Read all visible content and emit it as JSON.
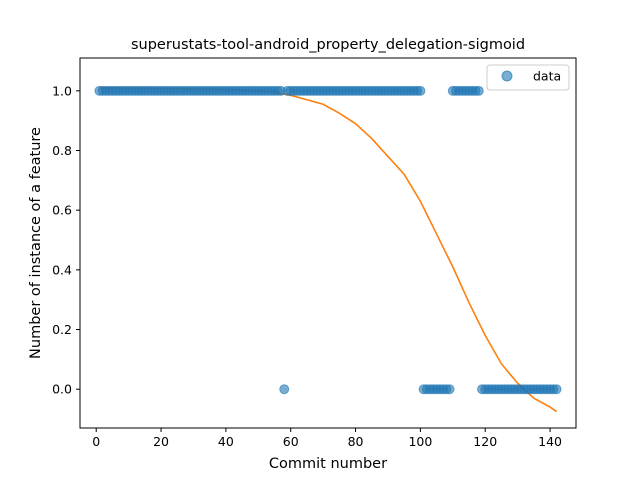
{
  "chart_data": {
    "type": "scatter",
    "title": "superustats-tool-android_property_delegation-sigmoid",
    "xlabel": "Commit number",
    "ylabel": "Number of instance of a feature",
    "xlim": [
      -5,
      148
    ],
    "ylim": [
      -0.13,
      1.11
    ],
    "xticks": [
      0,
      20,
      40,
      60,
      80,
      100,
      120,
      140
    ],
    "yticks": [
      0.0,
      0.2,
      0.4,
      0.6,
      0.8,
      1.0
    ],
    "xtick_labels": [
      "0",
      "20",
      "40",
      "60",
      "80",
      "100",
      "120",
      "140"
    ],
    "ytick_labels": [
      "0.0",
      "0.2",
      "0.4",
      "0.6",
      "0.8",
      "1.0"
    ],
    "legend": {
      "position": "top-right",
      "entries": [
        "data"
      ]
    },
    "grid": false,
    "colors": {
      "data": "#1f77b4",
      "fit": "#ff7f0e"
    },
    "series": [
      {
        "name": "data",
        "kind": "scatter",
        "points": [
          [
            1,
            1
          ],
          [
            2,
            1
          ],
          [
            3,
            1
          ],
          [
            4,
            1
          ],
          [
            5,
            1
          ],
          [
            6,
            1
          ],
          [
            7,
            1
          ],
          [
            8,
            1
          ],
          [
            9,
            1
          ],
          [
            10,
            1
          ],
          [
            11,
            1
          ],
          [
            12,
            1
          ],
          [
            13,
            1
          ],
          [
            14,
            1
          ],
          [
            15,
            1
          ],
          [
            16,
            1
          ],
          [
            17,
            1
          ],
          [
            18,
            1
          ],
          [
            19,
            1
          ],
          [
            20,
            1
          ],
          [
            21,
            1
          ],
          [
            22,
            1
          ],
          [
            23,
            1
          ],
          [
            24,
            1
          ],
          [
            25,
            1
          ],
          [
            26,
            1
          ],
          [
            27,
            1
          ],
          [
            28,
            1
          ],
          [
            29,
            1
          ],
          [
            30,
            1
          ],
          [
            31,
            1
          ],
          [
            32,
            1
          ],
          [
            33,
            1
          ],
          [
            34,
            1
          ],
          [
            35,
            1
          ],
          [
            36,
            1
          ],
          [
            37,
            1
          ],
          [
            38,
            1
          ],
          [
            39,
            1
          ],
          [
            40,
            1
          ],
          [
            41,
            1
          ],
          [
            42,
            1
          ],
          [
            43,
            1
          ],
          [
            44,
            1
          ],
          [
            45,
            1
          ],
          [
            46,
            1
          ],
          [
            47,
            1
          ],
          [
            48,
            1
          ],
          [
            49,
            1
          ],
          [
            50,
            1
          ],
          [
            51,
            1
          ],
          [
            52,
            1
          ],
          [
            53,
            1
          ],
          [
            54,
            1
          ],
          [
            55,
            1
          ],
          [
            56,
            1
          ],
          [
            57,
            1
          ],
          [
            58,
            0
          ],
          [
            59,
            1
          ],
          [
            60,
            1
          ],
          [
            61,
            1
          ],
          [
            62,
            1
          ],
          [
            63,
            1
          ],
          [
            64,
            1
          ],
          [
            65,
            1
          ],
          [
            66,
            1
          ],
          [
            67,
            1
          ],
          [
            68,
            1
          ],
          [
            69,
            1
          ],
          [
            70,
            1
          ],
          [
            71,
            1
          ],
          [
            72,
            1
          ],
          [
            73,
            1
          ],
          [
            74,
            1
          ],
          [
            75,
            1
          ],
          [
            76,
            1
          ],
          [
            77,
            1
          ],
          [
            78,
            1
          ],
          [
            79,
            1
          ],
          [
            80,
            1
          ],
          [
            81,
            1
          ],
          [
            82,
            1
          ],
          [
            83,
            1
          ],
          [
            84,
            1
          ],
          [
            85,
            1
          ],
          [
            86,
            1
          ],
          [
            87,
            1
          ],
          [
            88,
            1
          ],
          [
            89,
            1
          ],
          [
            90,
            1
          ],
          [
            91,
            1
          ],
          [
            92,
            1
          ],
          [
            93,
            1
          ],
          [
            94,
            1
          ],
          [
            95,
            1
          ],
          [
            96,
            1
          ],
          [
            97,
            1
          ],
          [
            98,
            1
          ],
          [
            99,
            1
          ],
          [
            100,
            1
          ],
          [
            101,
            0
          ],
          [
            102,
            0
          ],
          [
            103,
            0
          ],
          [
            104,
            0
          ],
          [
            105,
            0
          ],
          [
            106,
            0
          ],
          [
            107,
            0
          ],
          [
            108,
            0
          ],
          [
            109,
            0
          ],
          [
            110,
            1
          ],
          [
            111,
            1
          ],
          [
            112,
            1
          ],
          [
            113,
            1
          ],
          [
            114,
            1
          ],
          [
            115,
            1
          ],
          [
            116,
            1
          ],
          [
            117,
            1
          ],
          [
            118,
            1
          ],
          [
            119,
            0
          ],
          [
            120,
            0
          ],
          [
            121,
            0
          ],
          [
            122,
            0
          ],
          [
            123,
            0
          ],
          [
            124,
            0
          ],
          [
            125,
            0
          ],
          [
            126,
            0
          ],
          [
            127,
            0
          ],
          [
            128,
            0
          ],
          [
            129,
            0
          ],
          [
            130,
            0
          ],
          [
            131,
            0
          ],
          [
            132,
            0
          ],
          [
            133,
            0
          ],
          [
            134,
            0
          ],
          [
            135,
            0
          ],
          [
            136,
            0
          ],
          [
            137,
            0
          ],
          [
            138,
            0
          ],
          [
            139,
            0
          ],
          [
            140,
            0
          ],
          [
            141,
            0
          ],
          [
            142,
            0
          ]
        ]
      },
      {
        "kind": "line",
        "x": [
          1,
          20,
          40,
          50,
          55,
          60,
          65,
          70,
          75,
          80,
          85,
          90,
          95,
          100,
          105,
          110,
          115,
          120,
          125,
          130,
          135,
          140,
          142
        ],
        "y": [
          1.01,
          1.008,
          1.005,
          1.0,
          0.995,
          0.985,
          0.97,
          0.955,
          0.925,
          0.89,
          0.84,
          0.78,
          0.72,
          0.63,
          0.52,
          0.41,
          0.29,
          0.18,
          0.085,
          0.02,
          -0.03,
          -0.06,
          -0.075
        ]
      }
    ]
  }
}
